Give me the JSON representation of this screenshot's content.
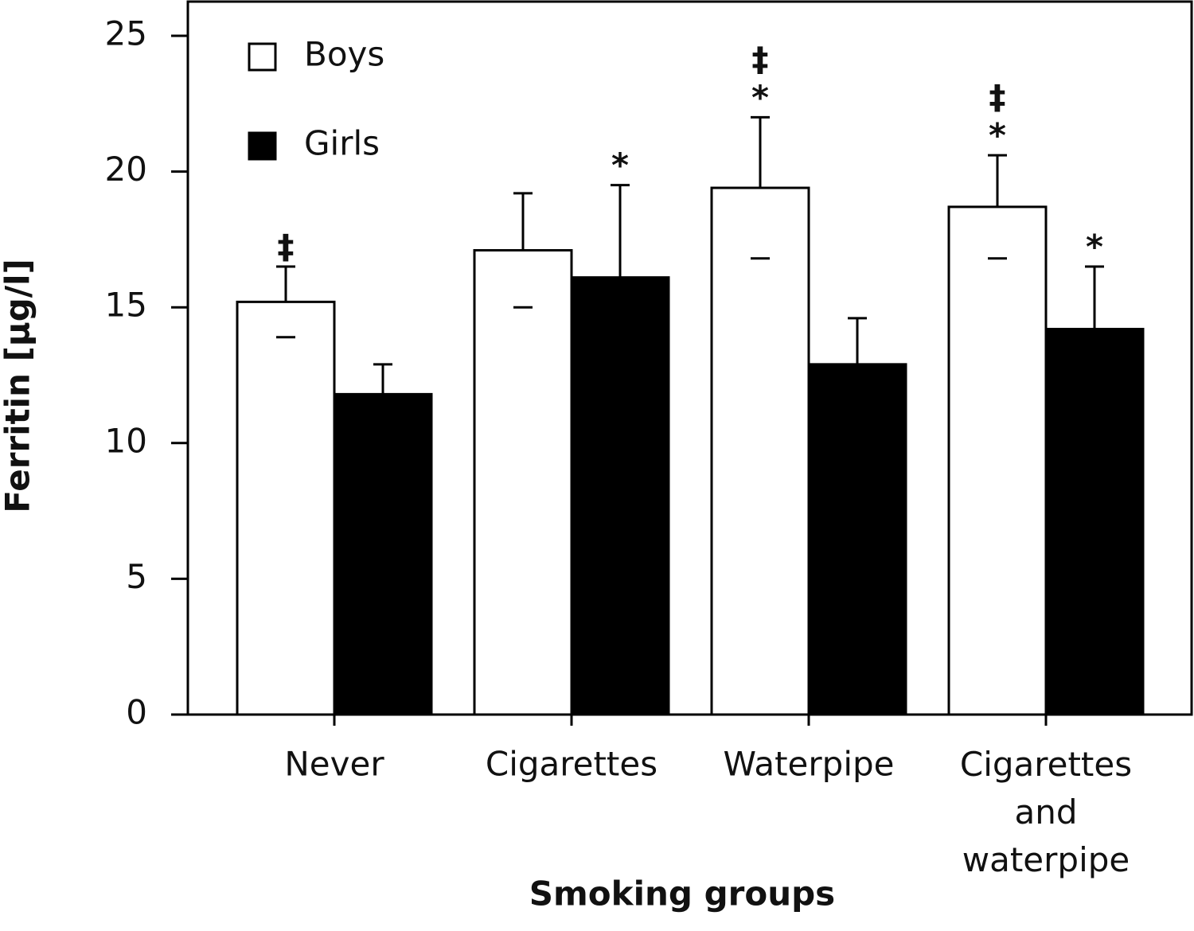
{
  "chart_data": {
    "type": "bar",
    "x_label": "Smoking groups",
    "y_label": "Ferritin [µg/l]",
    "categories": [
      "Never",
      "Cigarettes",
      "Waterpipe",
      "Cigarettes and waterpipe"
    ],
    "series": [
      {
        "name": "Boys",
        "color": "#ffffff",
        "values": [
          15.2,
          17.1,
          19.4,
          18.7
        ],
        "errors": [
          1.3,
          2.1,
          2.6,
          1.9
        ],
        "markers": [
          [
            "‡"
          ],
          null,
          [
            "*",
            "‡"
          ],
          [
            "*",
            "‡"
          ]
        ]
      },
      {
        "name": "Girls",
        "color": "#000000",
        "values": [
          11.8,
          16.1,
          12.9,
          14.2
        ],
        "errors": [
          1.1,
          3.4,
          1.7,
          2.3
        ],
        "markers": [
          null,
          [
            "*"
          ],
          null,
          [
            "*"
          ]
        ]
      }
    ],
    "ylim": [
      0,
      25
    ],
    "yticks": [
      0,
      5,
      10,
      15,
      20,
      25
    ],
    "legend": "top-left"
  }
}
